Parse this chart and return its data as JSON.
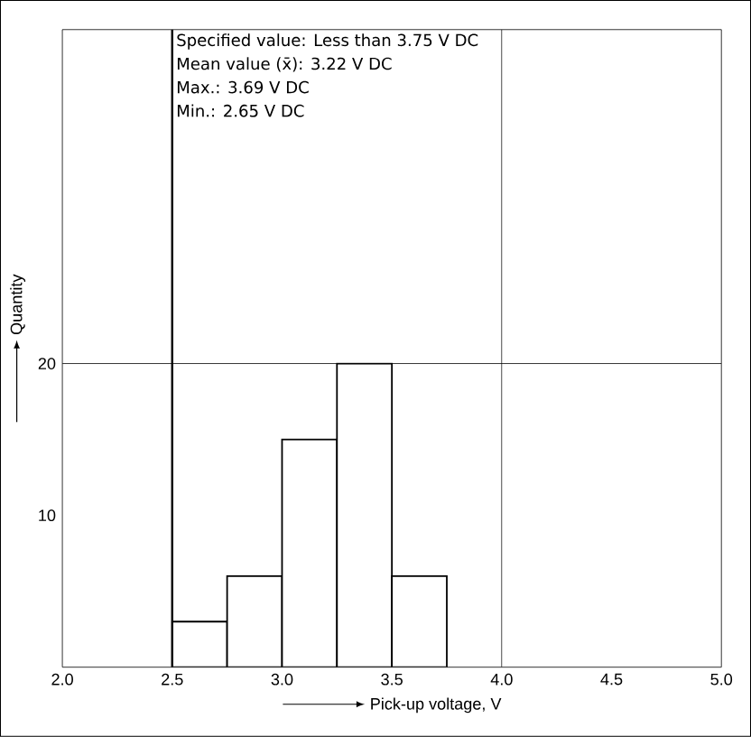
{
  "chart_data": {
    "type": "histogram",
    "xlabel": "Pick-up voltage, V",
    "ylabel": "Quantity",
    "bins": [
      2.5,
      2.75,
      3.0,
      3.25,
      3.5,
      3.75
    ],
    "values": [
      3,
      6,
      15,
      20,
      6
    ],
    "color": "#ffffff",
    "xlim": [
      2.0,
      5.0
    ],
    "ylim": [
      0,
      42
    ],
    "xticks": [
      {
        "value": 2.0,
        "label": "2.0"
      },
      {
        "value": 2.5,
        "label": "2.5"
      },
      {
        "value": 3.0,
        "label": "3.0"
      },
      {
        "value": 3.5,
        "label": "3.5"
      },
      {
        "value": 4.0,
        "label": "4.0"
      },
      {
        "value": 4.5,
        "label": "4.5"
      },
      {
        "value": 5.0,
        "label": "5.0"
      }
    ],
    "yticks": [
      10,
      20
    ],
    "ref_lines": [
      {
        "axis": "x",
        "value": 2.5
      },
      {
        "axis": "x",
        "value": 4.0
      },
      {
        "axis": "y",
        "value": 20
      }
    ],
    "annotations": [
      "Specified value: Less than 3.75 V DC",
      "Mean value (x̄): 3.22 V DC",
      "Max.: 3.69 V DC",
      "Min.: 2.65 V DC"
    ]
  }
}
